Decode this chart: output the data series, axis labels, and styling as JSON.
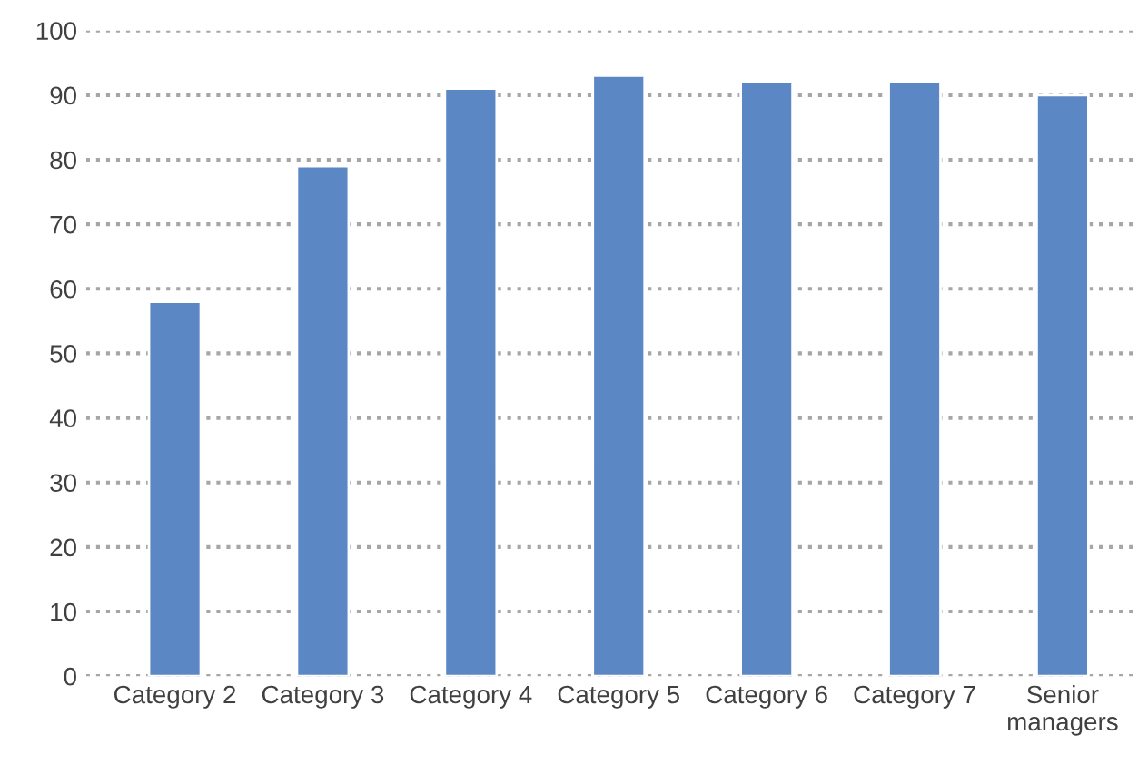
{
  "chart_data": {
    "type": "bar",
    "categories": [
      "Category 2",
      "Category 3",
      "Category 4",
      "Category 5",
      "Category 6",
      "Category 7",
      "Senior\nmanagers"
    ],
    "values": [
      58,
      79,
      91,
      93,
      92,
      92,
      90
    ],
    "color": "#5b87c5",
    "ylim": [
      0,
      100
    ],
    "yticks": [
      0,
      10,
      20,
      30,
      40,
      50,
      60,
      70,
      80,
      90,
      100
    ],
    "grid": "y",
    "line_style": "dotted"
  }
}
